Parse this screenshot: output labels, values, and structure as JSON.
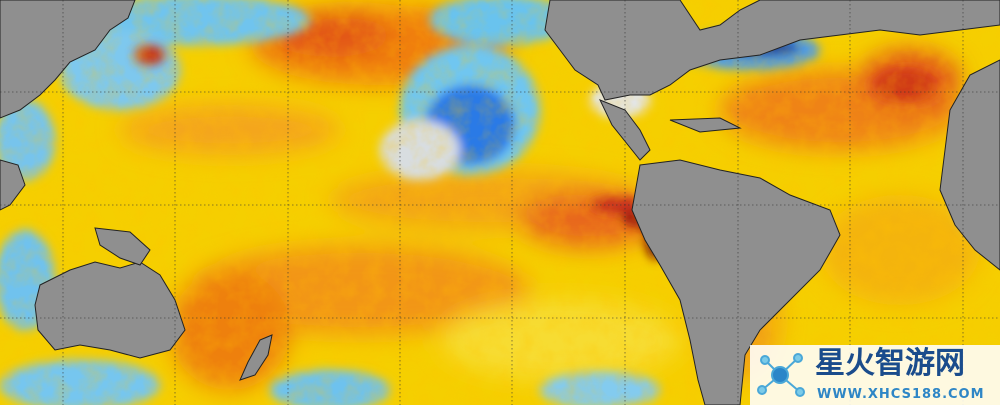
{
  "watermark": {
    "title": "星火智游网",
    "url": "WWW.XHCS188.COM"
  }
}
